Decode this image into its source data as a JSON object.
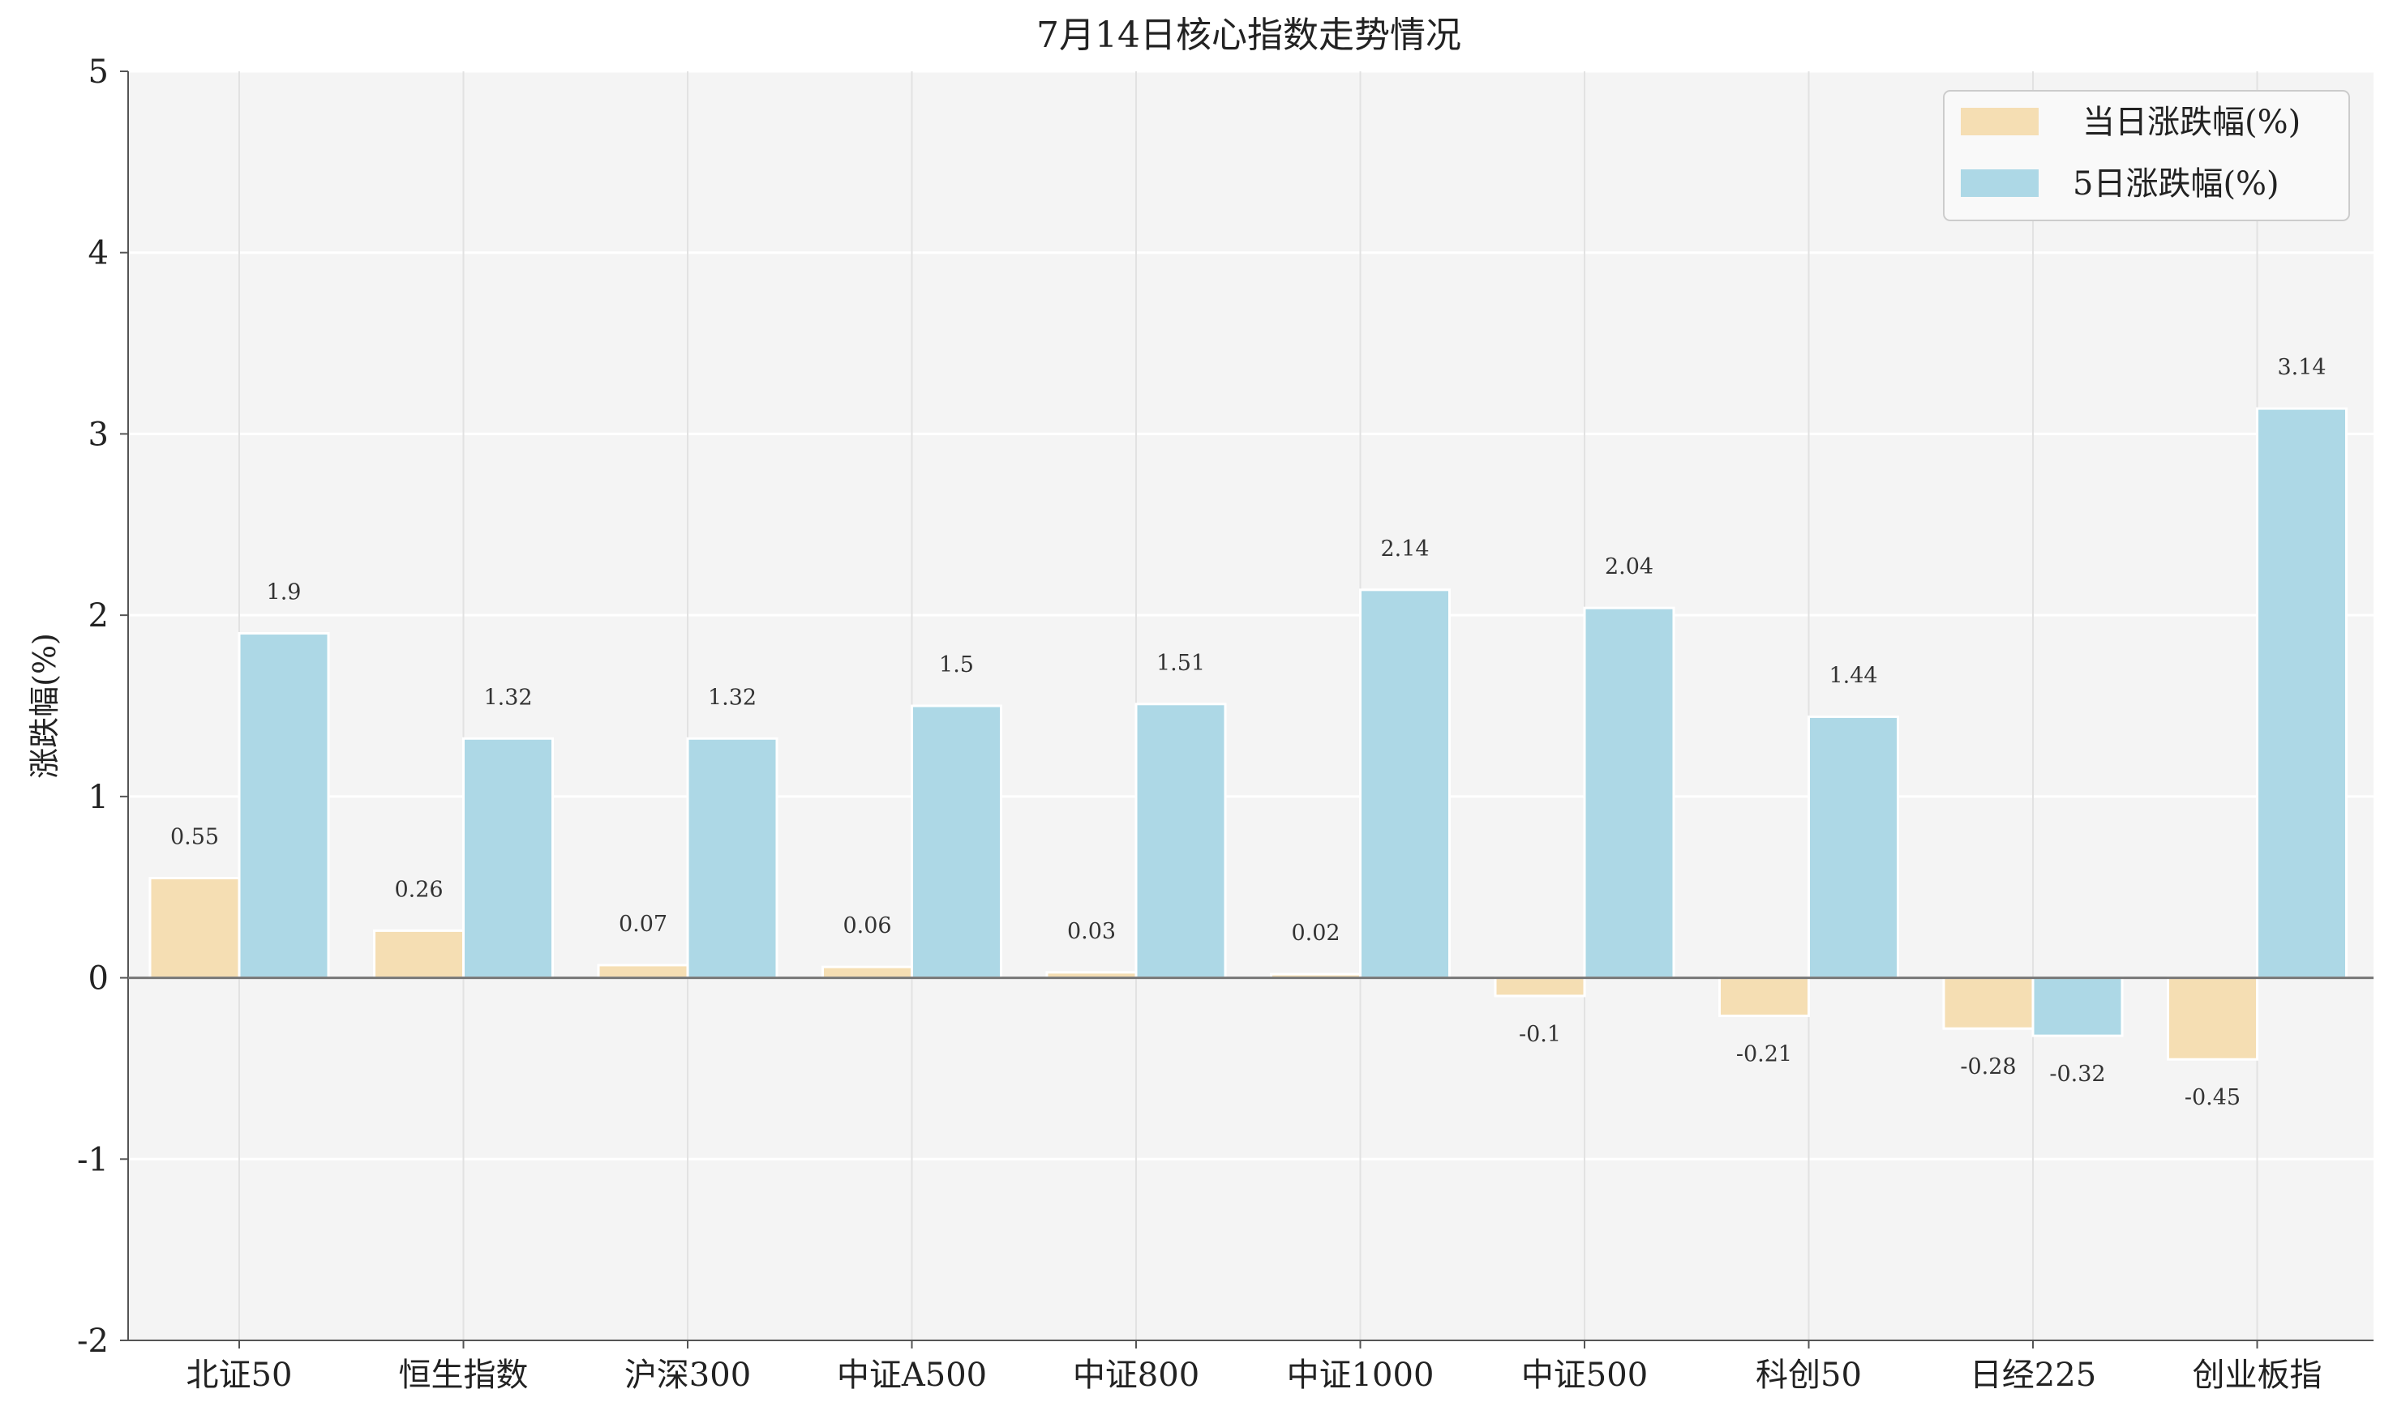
{
  "chart_data": {
    "type": "bar",
    "title": "7月14日核心指数走势情况",
    "xlabel": "",
    "ylabel": "涨跌幅(%)",
    "ylim": [
      -2,
      5
    ],
    "yticks": [
      "-2",
      "-1",
      "0",
      "1",
      "2",
      "3",
      "4",
      "5"
    ],
    "grid": true,
    "legend_position": "top-right",
    "categories": [
      "北证50",
      "恒生指数",
      "沪深300",
      "中证A500",
      "中证800",
      "中证1000",
      "中证500",
      "科创50",
      "日经225",
      "创业板指"
    ],
    "series": [
      {
        "name": "当日涨跌幅(%)",
        "color": "#f5deb3",
        "values": [
          0.55,
          0.26,
          0.07,
          0.06,
          0.03,
          0.02,
          -0.1,
          -0.21,
          -0.28,
          -0.45
        ],
        "labels": [
          "0.55",
          "0.26",
          "0.07",
          "0.06",
          "0.03",
          "0.02",
          "-0.1",
          "-0.21",
          "-0.28",
          "-0.45"
        ]
      },
      {
        "name": "5日涨跌幅(%)",
        "color": "#add8e6",
        "values": [
          1.9,
          1.32,
          1.32,
          1.5,
          1.51,
          2.14,
          2.04,
          1.44,
          -0.32,
          3.14
        ],
        "labels": [
          "1.9",
          "1.32",
          "1.32",
          "1.5",
          "1.51",
          "2.14",
          "2.04",
          "1.44",
          "-0.32",
          "3.14"
        ]
      }
    ]
  }
}
